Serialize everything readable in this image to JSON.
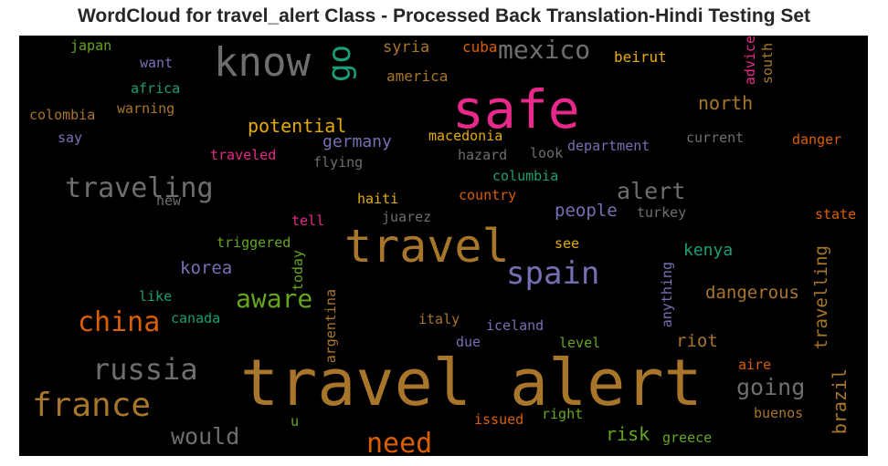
{
  "title": "WordCloud for travel_alert Class - Processed Back Translation-Hindi Testing Set",
  "colors": {
    "background": "#000000",
    "gray": "#6e6e6e",
    "gold": "#a8762a",
    "orange": "#d95f02",
    "pink": "#e7298a",
    "purple": "#7570b3",
    "green": "#1b9e77",
    "olive": "#66a61e",
    "yellow": "#e6ab02"
  },
  "words": [
    {
      "text": "travel alert",
      "color": "gold"
    },
    {
      "text": "travel",
      "color": "gold"
    },
    {
      "text": "safe",
      "color": "pink"
    },
    {
      "text": "know",
      "color": "gray"
    },
    {
      "text": "go",
      "color": "green"
    },
    {
      "text": "mexico",
      "color": "gray"
    },
    {
      "text": "spain",
      "color": "purple"
    },
    {
      "text": "traveling",
      "color": "gray"
    },
    {
      "text": "france",
      "color": "gold"
    },
    {
      "text": "russia",
      "color": "gray"
    },
    {
      "text": "china",
      "color": "orange"
    },
    {
      "text": "aware",
      "color": "olive"
    },
    {
      "text": "need",
      "color": "orange"
    },
    {
      "text": "would",
      "color": "gray"
    },
    {
      "text": "going",
      "color": "gray"
    },
    {
      "text": "alert",
      "color": "gray"
    },
    {
      "text": "potential",
      "color": "yellow"
    },
    {
      "text": "germany",
      "color": "purple"
    },
    {
      "text": "north",
      "color": "gold"
    },
    {
      "text": "dangerous",
      "color": "gold"
    },
    {
      "text": "korea",
      "color": "purple"
    },
    {
      "text": "people",
      "color": "purple"
    },
    {
      "text": "kenya",
      "color": "green"
    },
    {
      "text": "risk",
      "color": "olive"
    },
    {
      "text": "riot",
      "color": "gold"
    },
    {
      "text": "travelling",
      "color": "gold"
    },
    {
      "text": "brazil",
      "color": "gold"
    },
    {
      "text": "syria",
      "color": "gold"
    },
    {
      "text": "cuba",
      "color": "orange"
    },
    {
      "text": "beirut",
      "color": "yellow"
    },
    {
      "text": "america",
      "color": "gold"
    },
    {
      "text": "advice",
      "color": "pink"
    },
    {
      "text": "south",
      "color": "gold"
    },
    {
      "text": "japan",
      "color": "olive"
    },
    {
      "text": "want",
      "color": "purple"
    },
    {
      "text": "africa",
      "color": "green"
    },
    {
      "text": "warning",
      "color": "gold"
    },
    {
      "text": "colombia",
      "color": "gold"
    },
    {
      "text": "say",
      "color": "purple"
    },
    {
      "text": "traveled",
      "color": "pink"
    },
    {
      "text": "flying",
      "color": "gray"
    },
    {
      "text": "macedonia",
      "color": "yellow"
    },
    {
      "text": "hazard",
      "color": "gray"
    },
    {
      "text": "look",
      "color": "gray"
    },
    {
      "text": "department",
      "color": "purple"
    },
    {
      "text": "current",
      "color": "gray"
    },
    {
      "text": "danger",
      "color": "orange"
    },
    {
      "text": "columbia",
      "color": "green"
    },
    {
      "text": "new",
      "color": "gray"
    },
    {
      "text": "haiti",
      "color": "yellow"
    },
    {
      "text": "country",
      "color": "orange"
    },
    {
      "text": "turkey",
      "color": "gray"
    },
    {
      "text": "state",
      "color": "orange"
    },
    {
      "text": "tell",
      "color": "pink"
    },
    {
      "text": "juarez",
      "color": "gray"
    },
    {
      "text": "triggered",
      "color": "olive"
    },
    {
      "text": "today",
      "color": "olive"
    },
    {
      "text": "see",
      "color": "yellow"
    },
    {
      "text": "like",
      "color": "green"
    },
    {
      "text": "canada",
      "color": "green"
    },
    {
      "text": "argentina",
      "color": "gold"
    },
    {
      "text": "italy",
      "color": "gold"
    },
    {
      "text": "iceland",
      "color": "purple"
    },
    {
      "text": "anything",
      "color": "purple"
    },
    {
      "text": "due",
      "color": "purple"
    },
    {
      "text": "level",
      "color": "olive"
    },
    {
      "text": "aire",
      "color": "orange"
    },
    {
      "text": "buenos",
      "color": "gold"
    },
    {
      "text": "u",
      "color": "olive"
    },
    {
      "text": "issued",
      "color": "orange"
    },
    {
      "text": "right",
      "color": "olive"
    },
    {
      "text": "greece",
      "color": "olive"
    }
  ]
}
